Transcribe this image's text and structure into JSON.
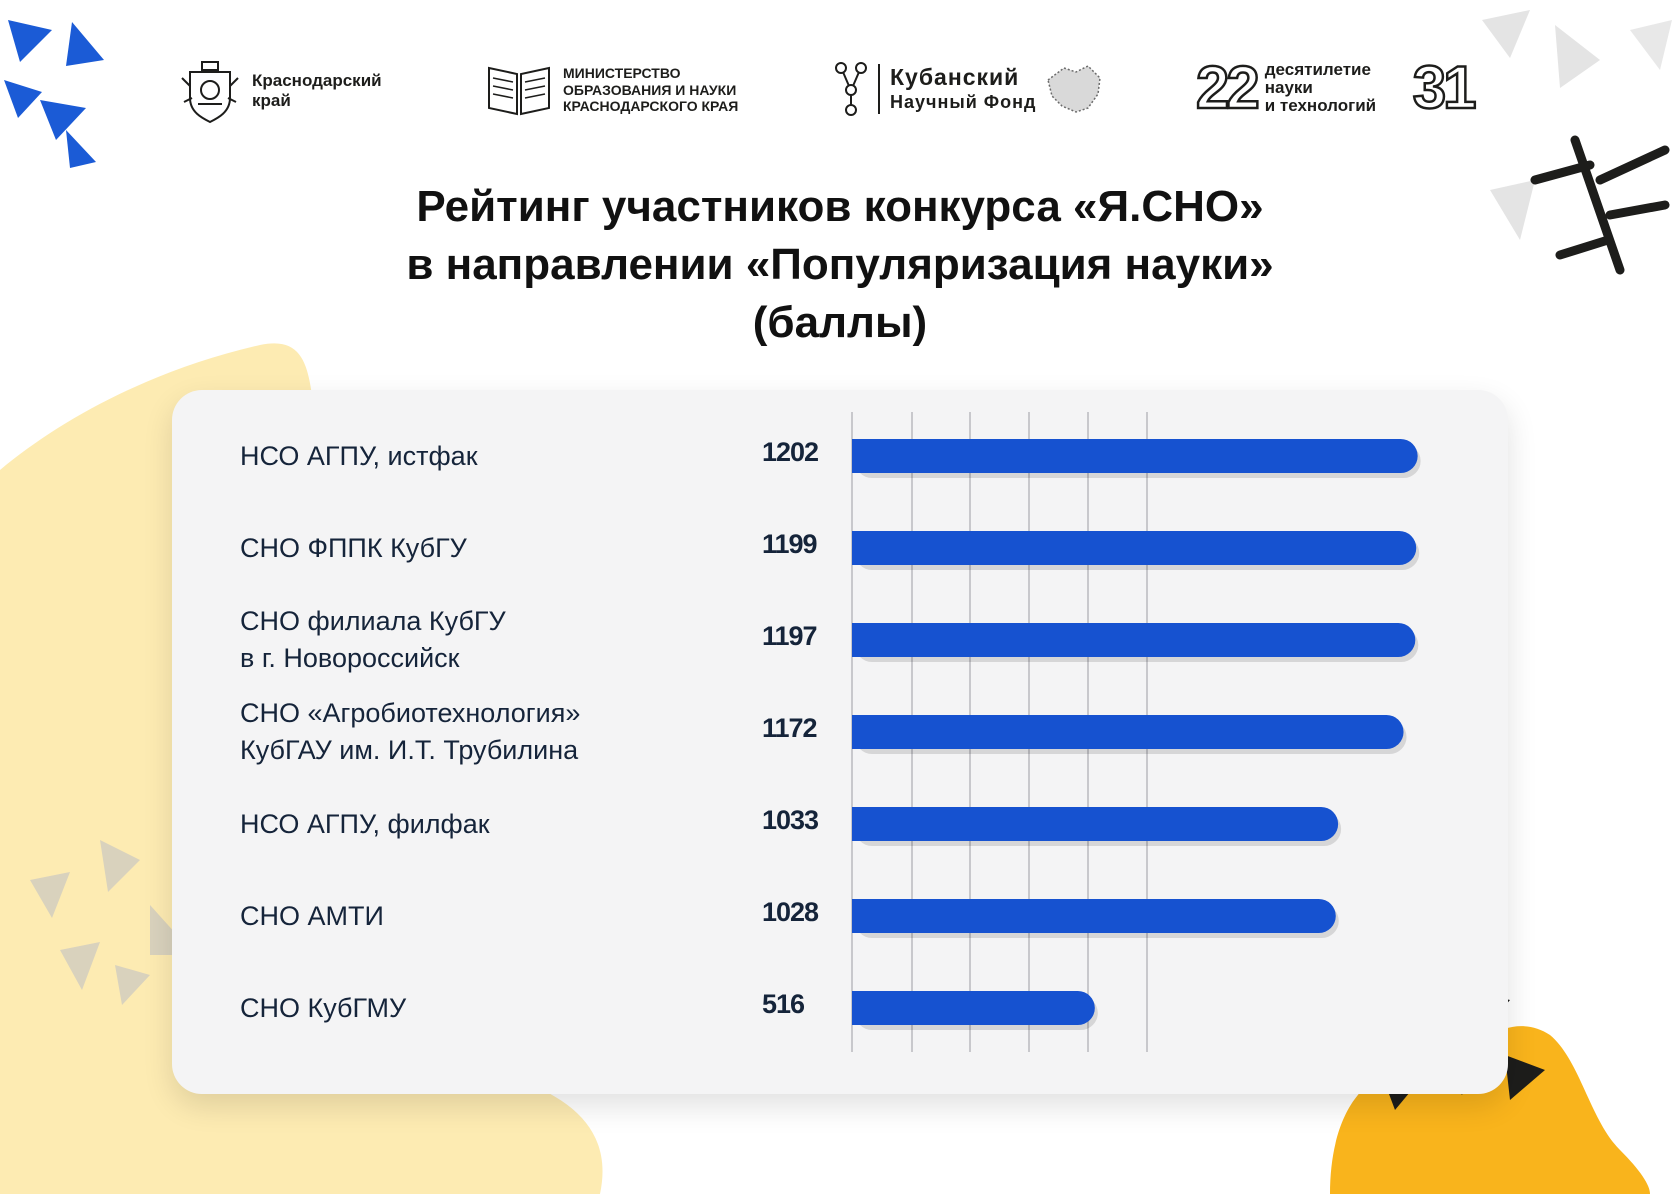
{
  "header": {
    "logo_krai": {
      "text": "Краснодарский\nкрай"
    },
    "logo_ministry": {
      "text": "МИНИСТЕРСТВО\nОБРАЗОВАНИЯ И НАУКИ\nКРАСНОДАРСКОГО КРАЯ"
    },
    "logo_fund": {
      "line1": "Кубанский",
      "line2": "Научный Фонд"
    },
    "logo_decade": {
      "num_left": "22",
      "text": "десятилетие\nнауки\nи технологий",
      "num_right": "31"
    }
  },
  "colors": {
    "bar": "#1652d0",
    "text": "#15243a",
    "card": "#f4f4f5",
    "grid": "#c8c8cc"
  },
  "chart_data": {
    "type": "bar",
    "orientation": "horizontal",
    "title": "Рейтинг участников конкурса «Я.СНО»\nв направлении «Популяризация науки»\n(баллы)",
    "categories": [
      "НСО АГПУ, истфак",
      "СНО ФППК КубГУ",
      "СНО филиала КубГУ\nв г. Новороссийск",
      "СНО «Агробиотехнология»\nКубГАУ им. И.Т. Трубилина",
      "НСО АГПУ, филфак",
      "СНО АМТИ",
      "СНО КубГМУ"
    ],
    "values": [
      1202,
      1199,
      1197,
      1172,
      1033,
      1028,
      516
    ],
    "value_labels": [
      "1202",
      "1199",
      "1197",
      "1172",
      "1033",
      "1028",
      "516"
    ],
    "grid": true,
    "legend": "none"
  }
}
